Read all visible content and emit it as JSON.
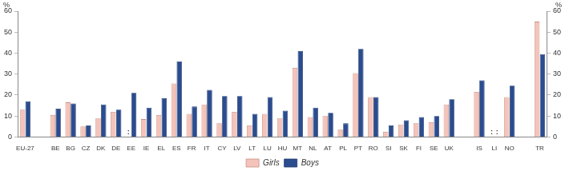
{
  "chart_data": {
    "type": "bar",
    "y_label": "%",
    "y2_label": "%",
    "categories": [
      "EU-27",
      null,
      "BE",
      "BG",
      "CZ",
      "DK",
      "DE",
      "EE",
      "IE",
      "EL",
      "ES",
      "FR",
      "IT",
      "CY",
      "LV",
      "LT",
      "LU",
      "HU",
      "MT",
      "NL",
      "AT",
      "PL",
      "PT",
      "RO",
      "SI",
      "SK",
      "FI",
      "SE",
      "UK",
      null,
      "IS",
      "LI",
      "NO",
      null,
      "TR"
    ],
    "series": [
      {
        "name": "Girls",
        "color": "#f4c3b9",
        "values": [
          13,
          null,
          10.5,
          16.5,
          5,
          9,
          12,
          null,
          8.5,
          10.5,
          25.5,
          11,
          15.5,
          6.5,
          12,
          5.5,
          11,
          9,
          33,
          9.5,
          10,
          3.5,
          30.5,
          19,
          2.5,
          6,
          6.5,
          7,
          15.5,
          null,
          21.5,
          null,
          19,
          null,
          55
        ]
      },
      {
        "name": "Boys",
        "color": "#2b4c8e",
        "values": [
          17,
          null,
          13.5,
          16,
          5.5,
          15.5,
          13,
          21,
          14,
          18.5,
          36,
          14.5,
          22.5,
          19.5,
          19.5,
          11,
          19,
          12.5,
          41,
          14,
          11.5,
          6.5,
          42,
          19,
          5.5,
          8,
          9.5,
          10,
          18,
          null,
          27,
          null,
          24.5,
          null,
          39.5
        ]
      }
    ],
    "annotations": [
      {
        "category": "EE",
        "series": "Girls",
        "text": ":"
      },
      {
        "category": "LI",
        "series": "Girls",
        "text": ":"
      },
      {
        "category": "LI",
        "series": "Boys",
        "text": ":"
      }
    ],
    "ylim": [
      0,
      60
    ],
    "yticks": [
      0,
      10,
      20,
      30,
      40,
      50,
      60
    ],
    "y2lim": [
      0,
      60
    ],
    "y2ticks": [
      0,
      10,
      20,
      30,
      40,
      50,
      60
    ],
    "grid": false,
    "legend": "bottom"
  }
}
